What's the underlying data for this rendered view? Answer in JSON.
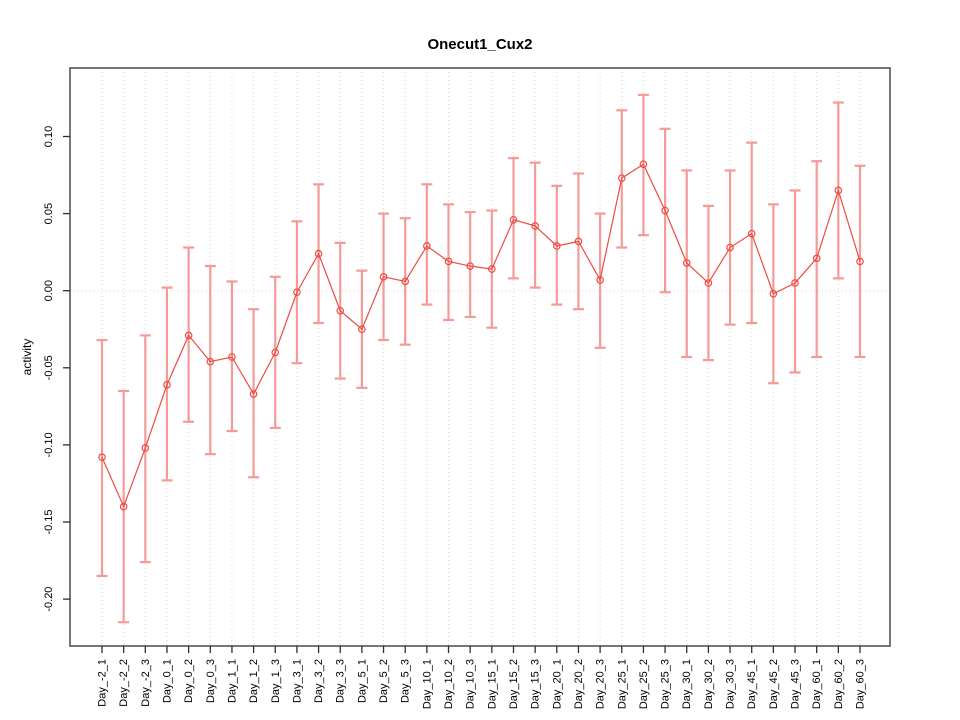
{
  "chart_data": {
    "type": "line",
    "title": "Onecut1_Cux2",
    "xlabel": "",
    "ylabel": "activity",
    "legend": "none",
    "grid": "dotted vertical gridline per category; dotted horizontal line at y=0",
    "ylim": [
      -0.225,
      0.135
    ],
    "y_ticks": [
      "-0.20",
      "-0.15",
      "-0.10",
      "-0.05",
      "0.00",
      "0.05",
      "0.10"
    ],
    "series_name": "activity",
    "marker": "open-circle",
    "error_bars": "vertical with caps",
    "categories": [
      "Day_-2_1",
      "Day_-2_2",
      "Day_-2_3",
      "Day_0_1",
      "Day_0_2",
      "Day_0_3",
      "Day_1_1",
      "Day_1_2",
      "Day_1_3",
      "Day_3_1",
      "Day_3_2",
      "Day_3_3",
      "Day_5_1",
      "Day_5_2",
      "Day_5_3",
      "Day_10_1",
      "Day_10_2",
      "Day_10_3",
      "Day_15_1",
      "Day_15_2",
      "Day_15_3",
      "Day_20_1",
      "Day_20_2",
      "Day_20_3",
      "Day_25_1",
      "Day_25_2",
      "Day_25_3",
      "Day_30_1",
      "Day_30_2",
      "Day_30_3",
      "Day_45_1",
      "Day_45_2",
      "Day_45_3",
      "Day_60_1",
      "Day_60_2",
      "Day_60_3"
    ],
    "values": [
      -0.108,
      -0.14,
      -0.102,
      -0.061,
      -0.029,
      -0.046,
      -0.043,
      -0.067,
      -0.04,
      -0.001,
      0.024,
      -0.013,
      -0.025,
      0.009,
      0.006,
      0.029,
      0.019,
      0.016,
      0.014,
      0.046,
      0.042,
      0.029,
      0.032,
      0.007,
      0.073,
      0.082,
      0.052,
      0.018,
      0.005,
      0.028,
      0.037,
      -0.002,
      0.005,
      0.021,
      0.065,
      0.019
    ],
    "ci_low": [
      -0.185,
      -0.215,
      -0.176,
      -0.123,
      -0.085,
      -0.106,
      -0.091,
      -0.121,
      -0.089,
      -0.047,
      -0.021,
      -0.057,
      -0.063,
      -0.032,
      -0.035,
      -0.009,
      -0.019,
      -0.017,
      -0.024,
      0.008,
      0.002,
      -0.009,
      -0.012,
      -0.037,
      0.028,
      0.036,
      -0.001,
      -0.043,
      -0.045,
      -0.022,
      -0.021,
      -0.06,
      -0.053,
      -0.043,
      0.008,
      -0.043
    ],
    "ci_high": [
      -0.032,
      -0.065,
      -0.029,
      0.002,
      0.028,
      0.016,
      0.006,
      -0.012,
      0.009,
      0.045,
      0.069,
      0.031,
      0.013,
      0.05,
      0.047,
      0.069,
      0.056,
      0.051,
      0.052,
      0.086,
      0.083,
      0.068,
      0.076,
      0.05,
      0.117,
      0.127,
      0.105,
      0.078,
      0.055,
      0.078,
      0.096,
      0.056,
      0.065,
      0.084,
      0.122,
      0.081
    ],
    "colors": {
      "line": "#EE4B43",
      "point": "#EE4B43",
      "error_bar": "#F59B97",
      "grid": "#D8D8D8",
      "zero_line": "#DFD2D2",
      "axis": "#2E2E2E",
      "text": "#000000"
    }
  }
}
